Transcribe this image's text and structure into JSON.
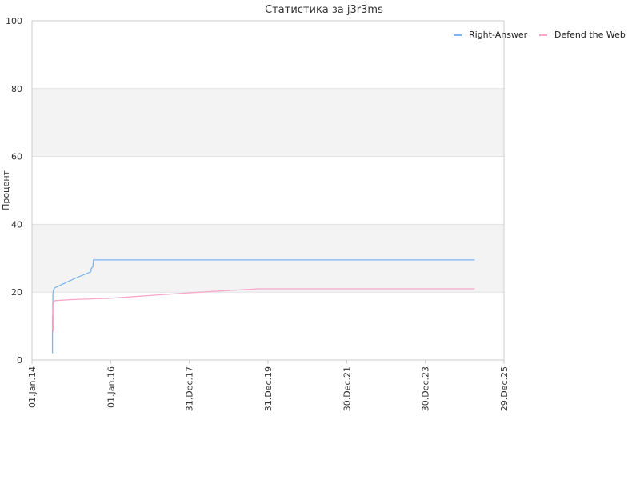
{
  "chart_data": {
    "type": "line",
    "title": "Статистика за j3r3ms",
    "xlabel": "",
    "ylabel": "Процент",
    "ylim": [
      0,
      100
    ],
    "y_ticks": [
      "0",
      "20",
      "40",
      "60",
      "80",
      "100"
    ],
    "x_range": [
      "2014-01-01",
      "2025-12-29"
    ],
    "x_ticks": [
      {
        "date": "2014-01-01",
        "label": "01.Jan.14"
      },
      {
        "date": "2016-01-01",
        "label": "01.Jan.16"
      },
      {
        "date": "2017-12-31",
        "label": "31.Dec.17"
      },
      {
        "date": "2019-12-31",
        "label": "31.Dec.19"
      },
      {
        "date": "2021-12-30",
        "label": "30.Dec.21"
      },
      {
        "date": "2023-12-30",
        "label": "30.Dec.23"
      },
      {
        "date": "2025-12-29",
        "label": "29.Dec.25"
      }
    ],
    "grid": true,
    "alternating_bands": true,
    "band_color": "#f3f3f3",
    "legend_position": "top-right",
    "series": [
      {
        "name": "Right-Answer",
        "color": "#7cb5ec",
        "points": [
          {
            "x": "2014-07-10",
            "y": 2
          },
          {
            "x": "2014-07-10",
            "y": 13
          },
          {
            "x": "2014-07-12",
            "y": 10
          },
          {
            "x": "2014-07-14",
            "y": 19.5
          },
          {
            "x": "2014-07-18",
            "y": 20.5
          },
          {
            "x": "2014-07-25",
            "y": 21
          },
          {
            "x": "2014-08-01",
            "y": 21.3
          },
          {
            "x": "2015-02-01",
            "y": 24
          },
          {
            "x": "2015-07-01",
            "y": 26
          },
          {
            "x": "2015-07-05",
            "y": 27
          },
          {
            "x": "2015-07-20",
            "y": 27.5
          },
          {
            "x": "2015-07-25",
            "y": 29.5
          },
          {
            "x": "2025-04-01",
            "y": 29.5
          }
        ]
      },
      {
        "name": "Defend the Web",
        "color": "#f7a6c8",
        "points": [
          {
            "x": "2014-07-12",
            "y": 9
          },
          {
            "x": "2014-07-14",
            "y": 15
          },
          {
            "x": "2014-07-16",
            "y": 8.5
          },
          {
            "x": "2014-07-18",
            "y": 17
          },
          {
            "x": "2014-08-01",
            "y": 17.5
          },
          {
            "x": "2015-01-01",
            "y": 17.8
          },
          {
            "x": "2016-01-01",
            "y": 18.2
          },
          {
            "x": "2017-01-01",
            "y": 19
          },
          {
            "x": "2018-01-01",
            "y": 19.8
          },
          {
            "x": "2019-01-01",
            "y": 20.5
          },
          {
            "x": "2019-10-01",
            "y": 21
          },
          {
            "x": "2025-04-01",
            "y": 21
          }
        ]
      }
    ]
  }
}
